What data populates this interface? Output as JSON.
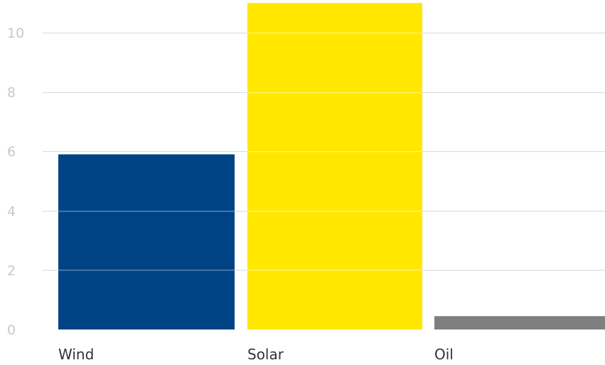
{
  "chart_data": {
    "type": "bar",
    "title": "",
    "xlabel": "",
    "ylabel": "",
    "categories": [
      "Wind",
      "Solar",
      "Oil"
    ],
    "values": [
      5.9,
      11.0,
      0.45
    ],
    "colors": [
      "#004385",
      "#ffe700",
      "#7f7f7f"
    ],
    "gridline_color": "#d9d9d9",
    "yticks": [
      0,
      2,
      4,
      6,
      8,
      10
    ],
    "ytick_labels": [
      "0",
      "2",
      "4",
      "6",
      "8",
      "10"
    ],
    "ylim": [
      0,
      11
    ],
    "grid": true,
    "legend": "none"
  }
}
